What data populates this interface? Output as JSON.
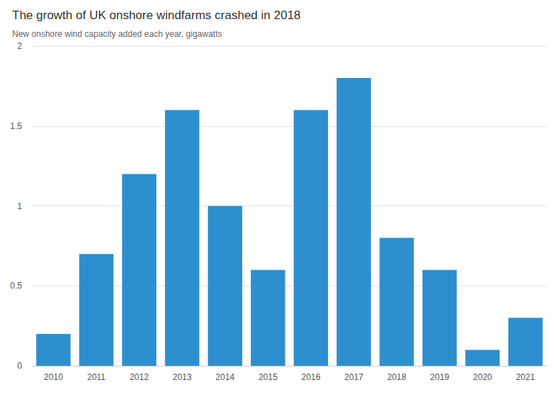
{
  "chart_data": {
    "type": "bar",
    "title": "The growth of UK onshore windfarms crashed in 2018",
    "subtitle": "New onshore wind capacity added each year, gigawatts",
    "categories": [
      "2010",
      "2011",
      "2012",
      "2013",
      "2014",
      "2015",
      "2016",
      "2017",
      "2018",
      "2019",
      "2020",
      "2021"
    ],
    "values": [
      0.2,
      0.7,
      1.2,
      1.6,
      1.0,
      0.6,
      1.6,
      1.8,
      0.8,
      0.6,
      0.1,
      0.3
    ],
    "color": "#2e8fce",
    "ylim": [
      0,
      2
    ],
    "yticks": [
      0,
      0.5,
      1,
      1.5,
      2
    ],
    "grid": true
  }
}
